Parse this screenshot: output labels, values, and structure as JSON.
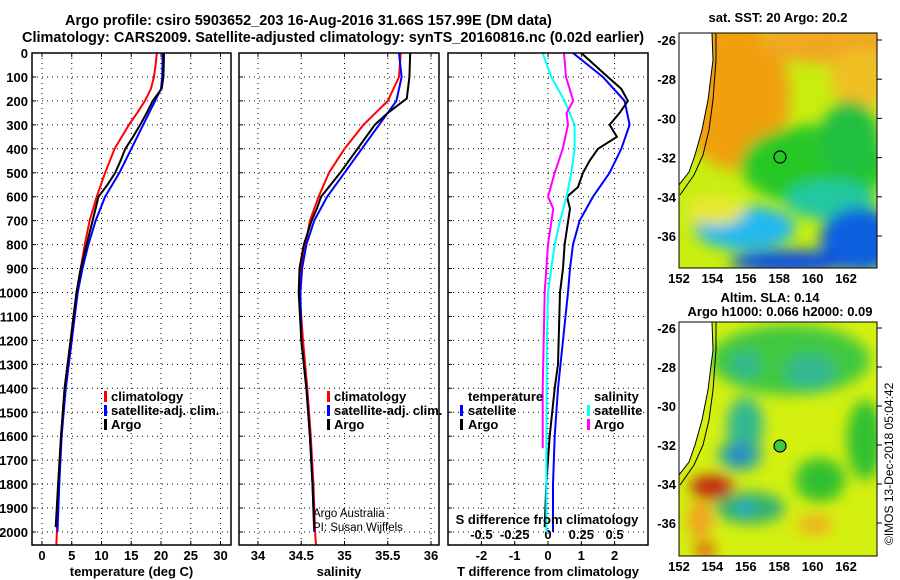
{
  "title": {
    "line1": "Argo profile: csiro 5903652_203 16-Aug-2016 31.66S 157.99E (DM data)",
    "line2": "Climatology: CARS2009. Satellite-adjusted climatology: synTS_20160816.nc (0.02d earlier)"
  },
  "colors": {
    "climatology": "#ff0000",
    "satellite": "#0000ff",
    "argo": "#000000",
    "s_satellite": "#00ffff",
    "s_argo": "#ff00ff"
  },
  "chart_data": [
    {
      "type": "line",
      "title": "",
      "xlabel": "temperature (deg C)",
      "ylabel": "",
      "xlim": [
        -1.7,
        31.6
      ],
      "ylim": [
        2055,
        0
      ],
      "xticks": [
        "0",
        "5",
        "10",
        "15",
        "20",
        "25",
        "30"
      ],
      "yticks": [
        "0",
        "100",
        "200",
        "300",
        "400",
        "500",
        "600",
        "700",
        "800",
        "900",
        "1000",
        "1100",
        "1200",
        "1300",
        "1400",
        "1500",
        "1600",
        "1700",
        "1800",
        "1900",
        "2000"
      ],
      "grid": true,
      "legend": [
        "climatology",
        "satellite-adj. clim.",
        "Argo"
      ],
      "series": [
        {
          "name": "climatology",
          "color": "#ff0000",
          "p": [
            0,
            50,
            100,
            150,
            200,
            250,
            300,
            400,
            500,
            600,
            700,
            800,
            900,
            1000,
            1200,
            1400,
            1600,
            1800,
            2000,
            2055
          ],
          "v": [
            19.3,
            19.1,
            18.8,
            18.3,
            17.3,
            16.0,
            14.6,
            12.2,
            10.6,
            9.2,
            8.0,
            7.2,
            6.5,
            5.8,
            4.8,
            3.8,
            3.2,
            2.8,
            2.5,
            2.4
          ]
        },
        {
          "name": "satellite-adj. clim.",
          "color": "#0000ff",
          "p": [
            0,
            100,
            150,
            200,
            250,
            300,
            400,
            500,
            600,
            700,
            800,
            900,
            1000,
            1200,
            1400,
            1600,
            1800,
            2000
          ],
          "v": [
            20.3,
            20.2,
            20.0,
            19.0,
            18.0,
            17.0,
            15.0,
            13.0,
            10.6,
            9.0,
            7.8,
            6.8,
            6.0,
            5.0,
            4.0,
            3.3,
            2.9,
            2.6
          ]
        },
        {
          "name": "Argo",
          "color": "#000000",
          "p": [
            0,
            100,
            150,
            200,
            250,
            300,
            350,
            400,
            450,
            500,
            550,
            600,
            700,
            800,
            900,
            1000,
            1200,
            1400,
            1600,
            1800,
            1980
          ],
          "v": [
            20.5,
            20.4,
            20.1,
            18.6,
            17.6,
            16.5,
            15.3,
            14.0,
            13.2,
            12.3,
            11.0,
            9.5,
            8.5,
            7.5,
            6.5,
            5.8,
            4.8,
            3.8,
            3.2,
            2.7,
            2.3
          ]
        }
      ]
    },
    {
      "type": "line",
      "xlabel": "salinity",
      "xlim": [
        33.79,
        36.1
      ],
      "ylim": [
        2055,
        0
      ],
      "xticks": [
        "34",
        "34.5",
        "35",
        "35.5",
        "36"
      ],
      "grid": true,
      "legend": [
        "climatology",
        "satellite-adj. clim.",
        "Argo"
      ],
      "series": [
        {
          "name": "climatology",
          "color": "#ff0000",
          "p": [
            0,
            100,
            200,
            300,
            400,
            500,
            600,
            700,
            800,
            900,
            1000,
            1100,
            1200,
            1400,
            1600,
            1800,
            2000,
            2055
          ],
          "v": [
            35.65,
            35.63,
            35.5,
            35.22,
            35.0,
            34.82,
            34.7,
            34.6,
            34.55,
            34.5,
            34.48,
            34.5,
            34.52,
            34.57,
            34.61,
            34.64,
            34.66,
            34.67
          ]
        },
        {
          "name": "satellite-adj. clim.",
          "color": "#0000ff",
          "p": [
            0,
            100,
            200,
            300,
            400,
            500,
            600,
            700,
            800,
            900,
            1000,
            1200,
            1400,
            1600,
            1800,
            2000
          ],
          "v": [
            35.63,
            35.66,
            35.6,
            35.4,
            35.2,
            35.0,
            34.8,
            34.65,
            34.56,
            34.51,
            34.49,
            34.5,
            34.56,
            34.6,
            34.63,
            34.65
          ]
        },
        {
          "name": "Argo",
          "color": "#000000",
          "p": [
            0,
            100,
            190,
            250,
            300,
            400,
            500,
            600,
            650,
            700,
            800,
            900,
            1000,
            1200,
            1400,
            1600,
            1800,
            1980
          ],
          "v": [
            35.76,
            35.75,
            35.72,
            35.5,
            35.35,
            35.15,
            34.95,
            34.73,
            34.68,
            34.62,
            34.53,
            34.48,
            34.47,
            34.5,
            34.56,
            34.6,
            34.63,
            34.65
          ]
        }
      ]
    },
    {
      "type": "line",
      "xlabel": "T difference from climatology",
      "x2label": "S difference from climatology",
      "xlim": [
        -3.0,
        3.0
      ],
      "x2lim": [
        -0.75,
        0.75
      ],
      "ylim": [
        2055,
        0
      ],
      "xticks": [
        "-2",
        "-1",
        "0",
        "1",
        "2"
      ],
      "x2ticks": [
        "-0.5",
        "-0.25",
        "0",
        "0.25",
        "0.5"
      ],
      "grid": true,
      "legend_t_title": "temperature",
      "legend_s_title": "salinity",
      "legend": [
        "satellite",
        "Argo"
      ],
      "series": [
        {
          "name": "T satellite",
          "axis": "T",
          "color": "#0000ff",
          "p": [
            0,
            50,
            100,
            200,
            300,
            400,
            500,
            600,
            700,
            800,
            900,
            1000,
            1200,
            1400,
            1600,
            1800,
            2000
          ],
          "v": [
            0.75,
            1.2,
            1.65,
            2.3,
            2.45,
            2.2,
            1.85,
            1.35,
            0.95,
            0.75,
            0.66,
            0.6,
            0.45,
            0.3,
            0.2,
            0.15,
            0.15
          ]
        },
        {
          "name": "T Argo",
          "axis": "T",
          "color": "#000000",
          "p": [
            0,
            50,
            100,
            150,
            200,
            250,
            300,
            350,
            400,
            450,
            500,
            560,
            600,
            650,
            800,
            900,
            1000,
            1300,
            1400,
            1600,
            1800,
            1980
          ],
          "v": [
            1.0,
            1.4,
            1.8,
            2.2,
            2.4,
            2.15,
            1.85,
            2.07,
            1.5,
            1.25,
            1.05,
            0.9,
            0.57,
            0.66,
            0.5,
            0.45,
            0.36,
            0.3,
            0.2,
            0.05,
            -0.05,
            -0.1
          ]
        },
        {
          "name": "S satellite",
          "axis": "S",
          "color": "#00ffff",
          "p": [
            0,
            100,
            200,
            300,
            400,
            500,
            600,
            700,
            800,
            900,
            1000,
            1200,
            1400,
            1600,
            1800,
            2000
          ],
          "v": [
            -0.04,
            0.025,
            0.125,
            0.2,
            0.2,
            0.175,
            0.14,
            0.09,
            0.05,
            0.025,
            0.0,
            -0.008,
            -0.01,
            -0.012,
            -0.012,
            -0.012
          ]
        },
        {
          "name": "S Argo",
          "axis": "S",
          "color": "#ff00ff",
          "p": [
            0,
            100,
            200,
            250,
            300,
            400,
            500,
            600,
            650,
            800,
            1000,
            1400,
            1650
          ],
          "v": [
            0.12,
            0.135,
            0.19,
            0.14,
            0.15,
            0.11,
            0.05,
            0.0,
            0.04,
            0.0,
            -0.025,
            -0.04,
            -0.04
          ]
        }
      ]
    }
  ],
  "credits": {
    "line1": "Argo Australia",
    "line2": "PI: Susan Wijffels"
  },
  "maps": {
    "sst": {
      "title": "sat. SST: 20 Argo: 20.2"
    },
    "sla": {
      "title1": "Altim. SLA: 0.14",
      "title2": "Argo h1000: 0.066 h2000: 0.09"
    },
    "lat_ticks": [
      "-26",
      "-28",
      "-30",
      "-32",
      "-34",
      "-36"
    ],
    "lon_ticks": [
      "152",
      "154",
      "156",
      "158",
      "160",
      "162"
    ],
    "float_position": {
      "lon": 157.99,
      "lat": -31.66
    }
  },
  "copyright": "©IMOS 13-Dec-2018 05:04:42"
}
